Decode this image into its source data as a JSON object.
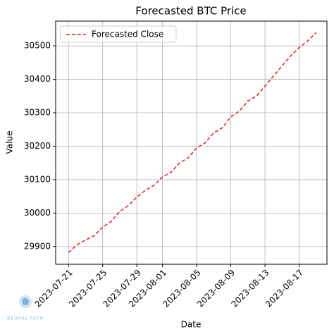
{
  "chart_data": {
    "type": "line",
    "title": "Forecasted BTC Price",
    "x_label": "Date",
    "y_label": "Value",
    "x": [
      "2023-07-21",
      "2023-07-22",
      "2023-07-23",
      "2023-07-24",
      "2023-07-25",
      "2023-07-26",
      "2023-07-27",
      "2023-07-28",
      "2023-07-29",
      "2023-07-30",
      "2023-07-31",
      "2023-08-01",
      "2023-08-02",
      "2023-08-03",
      "2023-08-04",
      "2023-08-05",
      "2023-08-06",
      "2023-08-07",
      "2023-08-08",
      "2023-08-09",
      "2023-08-10",
      "2023-08-11",
      "2023-08-12",
      "2023-08-13",
      "2023-08-14",
      "2023-08-15",
      "2023-08-16",
      "2023-08-17",
      "2023-08-18",
      "2023-08-19"
    ],
    "series": [
      {
        "name": "Forecasted Close",
        "color": "#e31a1c",
        "dashed": true,
        "values": [
          29882,
          29905,
          29920,
          29932,
          29958,
          29975,
          30005,
          30022,
          30048,
          30068,
          30083,
          30108,
          30122,
          30150,
          30165,
          30195,
          30210,
          30240,
          30255,
          30288,
          30305,
          30335,
          30350,
          30380,
          30410,
          30440,
          30470,
          30495,
          30515,
          30540
        ]
      }
    ],
    "xlim": [
      "2023-07-19T12:00",
      "2023-08-20T06:00"
    ],
    "xticks": [
      "2023-07-21",
      "2023-07-25",
      "2023-07-29",
      "2023-08-01",
      "2023-08-05",
      "2023-08-09",
      "2023-08-13",
      "2023-08-17"
    ],
    "ylim": [
      29847,
      30574
    ],
    "yticks": [
      29900,
      30000,
      30100,
      30200,
      30300,
      30400,
      30500
    ],
    "grid": true,
    "legend": "upper left"
  },
  "watermark": "NEURAL PATH"
}
